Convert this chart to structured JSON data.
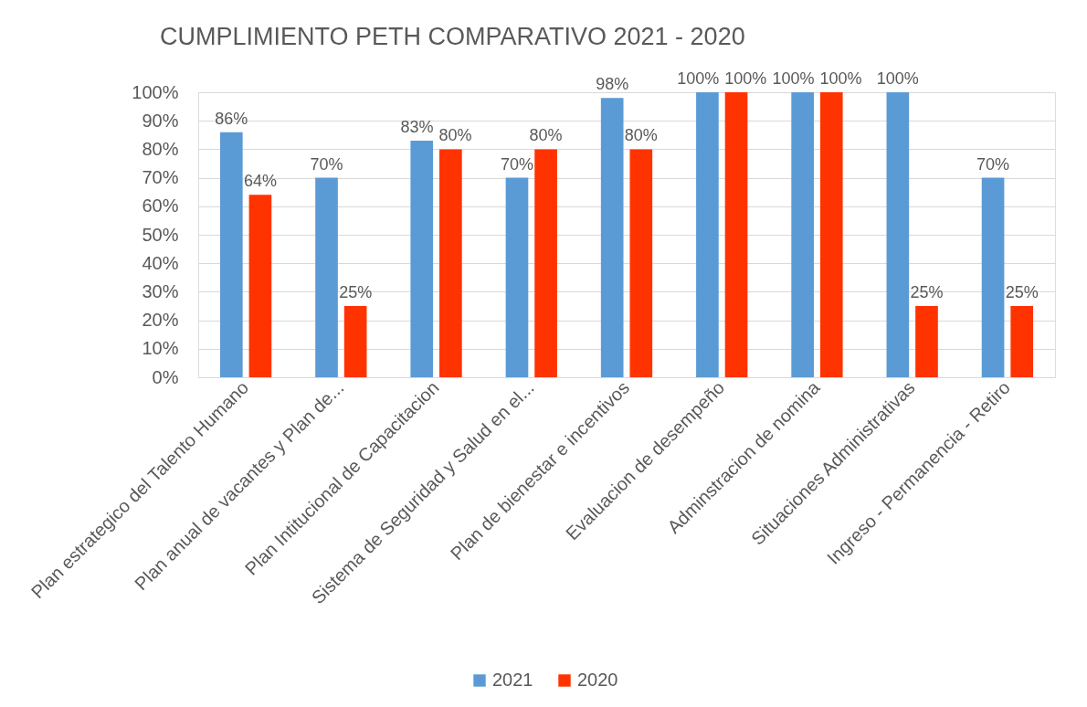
{
  "chart_data": {
    "type": "bar",
    "title": "CUMPLIMIENTO PETH COMPARATIVO 2021 - 2020",
    "categories": [
      "Plan estrategico del Talento Humano",
      "Plan anual de vacantes y Plan de...",
      "Plan Intitucional de Capacitacion",
      "Sistema de Seguridad y Salud en el...",
      "Plan de bienestar e incentivos",
      "Evaluacion de desempeño",
      "Adminstracion de nomina",
      "Situaciones Administrativas",
      "Ingreso - Permanencia - Retiro"
    ],
    "series": [
      {
        "name": "2021",
        "color": "#5b9bd5",
        "values": [
          86,
          70,
          83,
          70,
          98,
          100,
          100,
          100,
          70
        ],
        "value_labels": [
          "86%",
          "70%",
          "83%",
          "70%",
          "98%",
          "100%",
          "100%",
          "100%",
          "70%"
        ]
      },
      {
        "name": "2020",
        "color": "#ff3300",
        "values": [
          64,
          25,
          80,
          80,
          80,
          100,
          100,
          25,
          25
        ],
        "value_labels": [
          "64%",
          "25%",
          "80%",
          "80%",
          "80%",
          "100%",
          "100%",
          "25%",
          "25%"
        ]
      }
    ],
    "ylim": [
      0,
      100
    ],
    "yticks": [
      {
        "value": 0,
        "label": "0%"
      },
      {
        "value": 10,
        "label": "10%"
      },
      {
        "value": 20,
        "label": "20%"
      },
      {
        "value": 30,
        "label": "30%"
      },
      {
        "value": 40,
        "label": "40%"
      },
      {
        "value": 50,
        "label": "50%"
      },
      {
        "value": 60,
        "label": "60%"
      },
      {
        "value": 70,
        "label": "70%"
      },
      {
        "value": 80,
        "label": "80%"
      },
      {
        "value": 90,
        "label": "90%"
      },
      {
        "value": 100,
        "label": "100%"
      }
    ],
    "grid": "y",
    "legend": "bottom"
  }
}
